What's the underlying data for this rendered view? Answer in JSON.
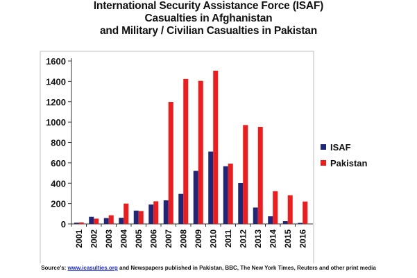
{
  "chart_data": {
    "type": "bar",
    "title_lines": [
      "International Security Assistance Force (ISAF)",
      "Casualties in Afghanistan",
      "and Military / Civilian Casualties in Pakistan"
    ],
    "categories": [
      "2001",
      "2002",
      "2003",
      "2004",
      "2005",
      "2006",
      "2007",
      "2008",
      "2009",
      "2010",
      "2011",
      "2012",
      "2013",
      "2014",
      "2015",
      "2016"
    ],
    "series": [
      {
        "name": "ISAF",
        "color": "#1f2778",
        "values": [
          12,
          70,
          58,
          60,
          131,
          191,
          232,
          295,
          521,
          711,
          566,
          402,
          161,
          75,
          27,
          10
        ]
      },
      {
        "name": "Pakistan",
        "color": "#ee1c1c",
        "values": [
          15,
          52,
          85,
          200,
          127,
          222,
          1198,
          1424,
          1405,
          1505,
          592,
          971,
          953,
          322,
          282,
          220
        ]
      }
    ],
    "yticks": [
      0,
      200,
      400,
      600,
      800,
      1000,
      1200,
      1400,
      1600
    ],
    "ylim": [
      0,
      1600
    ],
    "grid": false,
    "legend_position": "right"
  },
  "footer": {
    "source_prefix": "Source's: ",
    "source_link": "www.icasulties.org",
    "source_suffix": " and Newspapers published in Pakistan, BBC, The New York Times, Reuters and other print media"
  }
}
